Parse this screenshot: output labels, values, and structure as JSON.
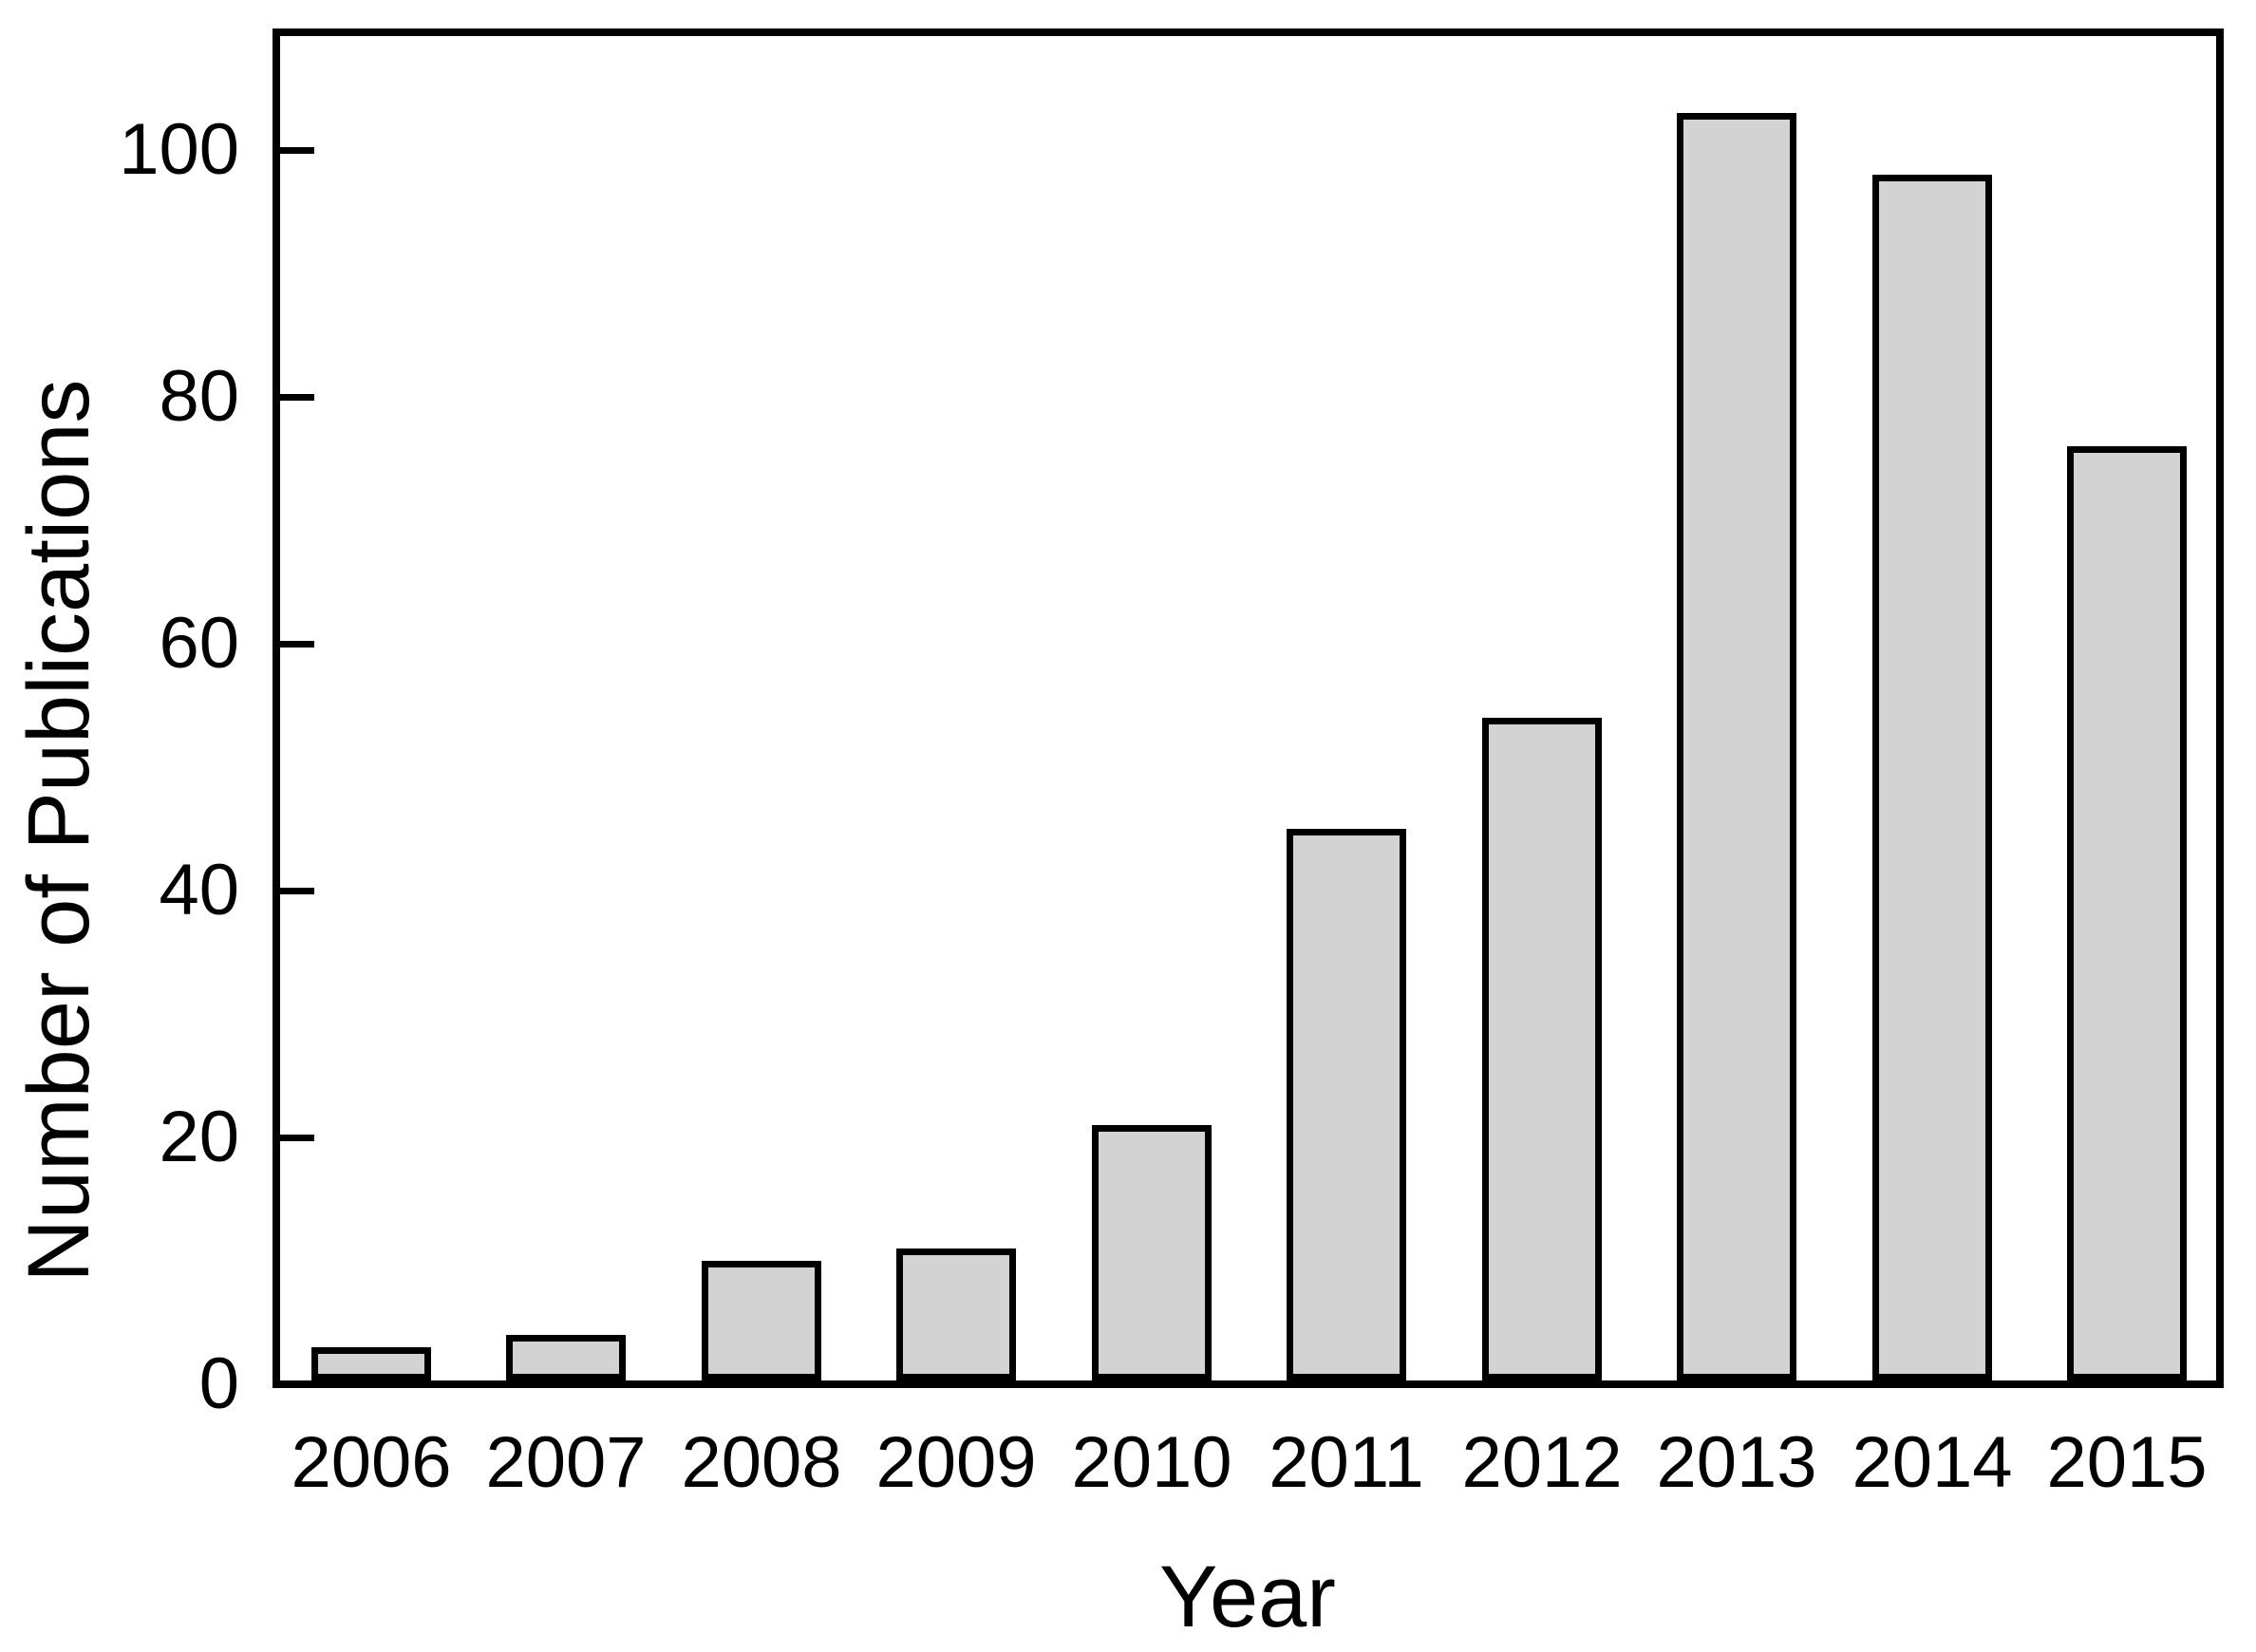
{
  "figure": {
    "background_color": "#ffffff",
    "axis_color": "#000000",
    "text_color": "#000000"
  },
  "chart_data": {
    "type": "bar",
    "title": "",
    "xlabel": "Year",
    "ylabel": "Number of Publications",
    "categories": [
      "2006",
      "2007",
      "2008",
      "2009",
      "2010",
      "2011",
      "2012",
      "2013",
      "2014",
      "2015"
    ],
    "values": [
      3,
      4,
      10,
      11,
      21,
      45,
      54,
      103,
      98,
      76
    ],
    "y_ticks": [
      0,
      20,
      40,
      60,
      80,
      100
    ],
    "ylim": [
      0,
      110
    ],
    "grid": false,
    "legend": null,
    "bar_fill_color": "#d3d3d3",
    "bar_stroke_color": "#000000",
    "layout_hints": {
      "ticks_direction": "inward",
      "plot_frame": "full-box",
      "bar_gap": "narrow"
    }
  }
}
